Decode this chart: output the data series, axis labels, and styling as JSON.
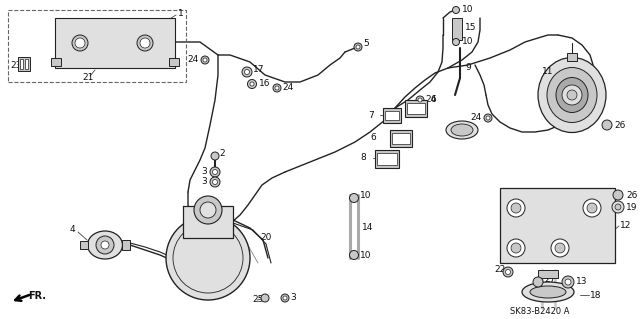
{
  "bg_color": "#ffffff",
  "line_color": "#222222",
  "diagram_code": "SK83-B2420 A",
  "fr_label": "FR.",
  "label_color": "#111111",
  "fill_light": "#e0e0e0",
  "fill_mid": "#c8c8c8",
  "fill_dark": "#aaaaaa"
}
